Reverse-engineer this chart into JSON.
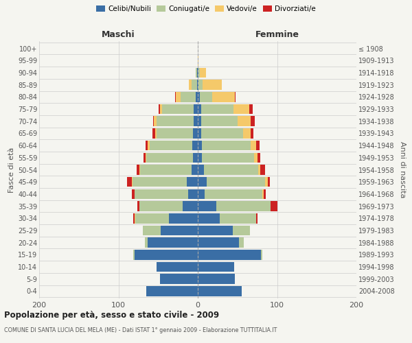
{
  "age_groups": [
    "0-4",
    "5-9",
    "10-14",
    "15-19",
    "20-24",
    "25-29",
    "30-34",
    "35-39",
    "40-44",
    "45-49",
    "50-54",
    "55-59",
    "60-64",
    "65-69",
    "70-74",
    "75-79",
    "80-84",
    "85-89",
    "90-94",
    "95-99",
    "100+"
  ],
  "birth_years": [
    "2004-2008",
    "1999-2003",
    "1994-1998",
    "1989-1993",
    "1984-1988",
    "1979-1983",
    "1974-1978",
    "1969-1973",
    "1964-1968",
    "1959-1963",
    "1954-1958",
    "1949-1953",
    "1944-1948",
    "1939-1943",
    "1934-1938",
    "1929-1933",
    "1924-1928",
    "1919-1923",
    "1914-1918",
    "1909-1913",
    "≤ 1908"
  ],
  "males": {
    "celibi": [
      65,
      48,
      52,
      80,
      63,
      47,
      36,
      19,
      12,
      14,
      8,
      6,
      7,
      6,
      5,
      5,
      3,
      1,
      1,
      0,
      0
    ],
    "coniugati": [
      0,
      0,
      0,
      1,
      4,
      22,
      43,
      55,
      68,
      68,
      65,
      59,
      54,
      46,
      47,
      40,
      19,
      7,
      2,
      0,
      0
    ],
    "vedovi": [
      0,
      0,
      0,
      0,
      0,
      0,
      1,
      0,
      0,
      1,
      1,
      1,
      2,
      2,
      3,
      3,
      6,
      3,
      0,
      0,
      0
    ],
    "divorziati": [
      0,
      0,
      0,
      0,
      0,
      0,
      1,
      2,
      3,
      6,
      3,
      2,
      3,
      3,
      1,
      1,
      1,
      0,
      0,
      0,
      0
    ]
  },
  "females": {
    "nubili": [
      55,
      47,
      46,
      80,
      52,
      44,
      28,
      23,
      9,
      11,
      8,
      5,
      5,
      4,
      4,
      4,
      3,
      1,
      1,
      0,
      0
    ],
    "coniugate": [
      0,
      0,
      0,
      1,
      6,
      22,
      46,
      69,
      72,
      74,
      68,
      66,
      62,
      53,
      46,
      41,
      15,
      5,
      2,
      0,
      0
    ],
    "vedove": [
      0,
      0,
      0,
      0,
      0,
      0,
      0,
      0,
      2,
      3,
      3,
      4,
      7,
      10,
      17,
      20,
      29,
      24,
      7,
      1,
      0
    ],
    "divorziate": [
      0,
      0,
      0,
      0,
      0,
      0,
      1,
      8,
      3,
      3,
      6,
      4,
      4,
      3,
      5,
      4,
      1,
      0,
      0,
      0,
      0
    ]
  },
  "colors": {
    "celibi": "#3a6ea5",
    "coniugati": "#b5c99a",
    "vedovi": "#f5c96a",
    "divorziati": "#cc2222"
  },
  "xlim": 200,
  "title": "Popolazione per età, sesso e stato civile - 2009",
  "subtitle": "COMUNE DI SANTA LUCIA DEL MELA (ME) - Dati ISTAT 1° gennaio 2009 - Elaborazione TUTTITALIA.IT",
  "ylabel_left": "Fasce di età",
  "ylabel_right": "Anni di nascita",
  "xlabel_left": "Maschi",
  "xlabel_right": "Femmine",
  "bg_color": "#f5f5f0",
  "grid_color": "#dddddd"
}
